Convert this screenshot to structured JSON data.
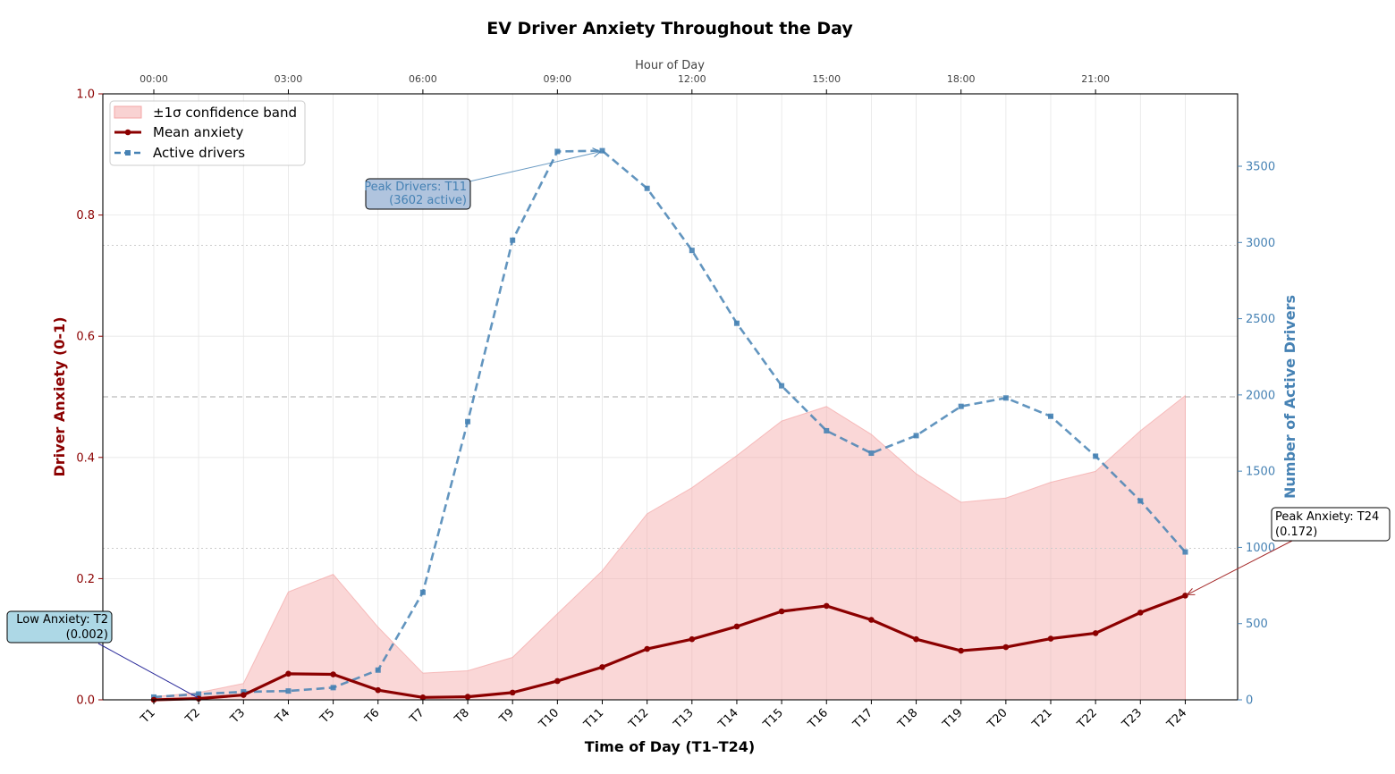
{
  "chart_data": {
    "type": "line",
    "title": "EV Driver Anxiety Throughout the Day",
    "xlabel": "Time of Day (T1–T24)",
    "ylabel_left": "Driver Anxiety (0-1)",
    "ylabel_right": "Number of Active Drivers",
    "top_axis_label": "Hour of Day",
    "categories": [
      "T1",
      "T2",
      "T3",
      "T4",
      "T5",
      "T6",
      "T7",
      "T8",
      "T9",
      "T10",
      "T11",
      "T12",
      "T13",
      "T14",
      "T15",
      "T16",
      "T17",
      "T18",
      "T19",
      "T20",
      "T21",
      "T22",
      "T23",
      "T24"
    ],
    "top_ticks": [
      {
        "index": 0,
        "label": "00:00"
      },
      {
        "index": 3,
        "label": "03:00"
      },
      {
        "index": 6,
        "label": "06:00"
      },
      {
        "index": 9,
        "label": "09:00"
      },
      {
        "index": 12,
        "label": "12:00"
      },
      {
        "index": 15,
        "label": "15:00"
      },
      {
        "index": 18,
        "label": "18:00"
      },
      {
        "index": 21,
        "label": "21:00"
      }
    ],
    "ylim_left": [
      0,
      1.0
    ],
    "yticks_left": [
      "0.0",
      "0.2",
      "0.4",
      "0.6",
      "0.8",
      "1.0"
    ],
    "ylim_right": [
      0,
      3975
    ],
    "yticks_right": [
      0,
      500,
      1000,
      1500,
      2000,
      2500,
      3000,
      3500
    ],
    "series": [
      {
        "name": "Mean anxiety",
        "axis": "left",
        "color": "#8b0000",
        "style": "solid",
        "values": [
          0.0,
          0.002,
          0.008,
          0.043,
          0.042,
          0.016,
          0.004,
          0.005,
          0.012,
          0.031,
          0.054,
          0.084,
          0.1,
          0.121,
          0.146,
          0.155,
          0.132,
          0.1,
          0.081,
          0.087,
          0.101,
          0.11,
          0.144,
          0.172
        ]
      },
      {
        "name": "Active drivers",
        "axis": "right",
        "color": "#4682b4",
        "style": "dashed",
        "values": [
          18,
          38,
          52,
          58,
          80,
          195,
          705,
          1825,
          3015,
          3597,
          3602,
          3355,
          2948,
          2470,
          2060,
          1765,
          1618,
          1733,
          1925,
          1980,
          1860,
          1598,
          1305,
          970
        ]
      }
    ],
    "confidence_band": {
      "name": "±1σ confidence band",
      "color": "#f4a6a6",
      "lower": [
        0,
        0,
        0,
        0,
        0,
        0,
        0,
        0,
        0,
        0,
        0,
        0,
        0,
        0,
        0,
        0,
        0,
        0,
        0,
        0,
        0,
        0,
        0,
        0
      ],
      "upper": [
        0.005,
        0.012,
        0.027,
        0.178,
        0.207,
        0.12,
        0.044,
        0.048,
        0.07,
        0.142,
        0.213,
        0.307,
        0.35,
        0.403,
        0.46,
        0.484,
        0.438,
        0.373,
        0.326,
        0.333,
        0.359,
        0.377,
        0.444,
        0.502
      ]
    },
    "reference_lines_left": [
      {
        "y": 0.5,
        "style": "dashed",
        "color": "#aaaaaa"
      },
      {
        "y": 0.25,
        "style": "dotted",
        "color": "#cccccc"
      },
      {
        "y": 0.75,
        "style": "dotted",
        "color": "#cccccc"
      }
    ],
    "legend": {
      "placement": "top-left",
      "items": [
        "±1σ confidence band",
        "Mean anxiety",
        "Active drivers"
      ]
    },
    "grid": true,
    "annotations": [
      {
        "text_line1": "Peak Drivers: T11",
        "text_line2": "(3602 active)",
        "index": 10,
        "series": "Active drivers",
        "box_color": "#b0c4de",
        "text_color": "#4682b4"
      },
      {
        "text_line1": "Low Anxiety: T2",
        "text_line2": "(0.002)",
        "index": 1,
        "series": "Mean anxiety",
        "box_color": "#add8e6",
        "text_color": "#000000"
      },
      {
        "text_line1": "Peak Anxiety: T24",
        "text_line2": "(0.172)",
        "index": 23,
        "series": "Mean anxiety",
        "box_color": "#ffffff",
        "text_color": "#000000"
      }
    ],
    "colors": {
      "left_axis": "#8b0000",
      "right_axis": "#4682b4",
      "top_axis": "#444444"
    }
  }
}
